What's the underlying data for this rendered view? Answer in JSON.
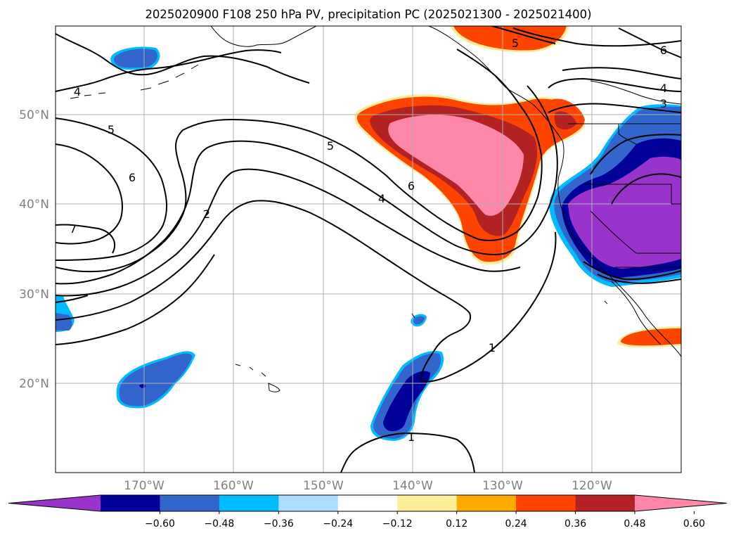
{
  "title": "2025020900 F108 250 hPa PV, precipitation PC (2025021300 - 2025021400)",
  "lon_ticks": [
    "170°W",
    "160°W",
    "150°W",
    "140°W",
    "130°W",
    "120°W"
  ],
  "lat_ticks": [
    "50°N",
    "40°N",
    "30°N",
    "20°N"
  ],
  "contour_labels": [
    "4",
    "5",
    "6",
    "7",
    "2",
    "5",
    "6",
    "4",
    "1",
    "1",
    "5",
    "6",
    "4",
    "3"
  ],
  "colorbar": {
    "ticks": [
      "−0.60",
      "−0.48",
      "−0.36",
      "−0.24",
      "−0.12",
      "0.12",
      "0.24",
      "0.36",
      "0.48",
      "0.60"
    ],
    "colors": [
      "#9933cc",
      "#000099",
      "#3366cc",
      "#00bbff",
      "#aaddff",
      "#ffffff",
      "#ffee99",
      "#ffaa00",
      "#ff4400",
      "#b22222",
      "#ff88aa"
    ]
  }
}
